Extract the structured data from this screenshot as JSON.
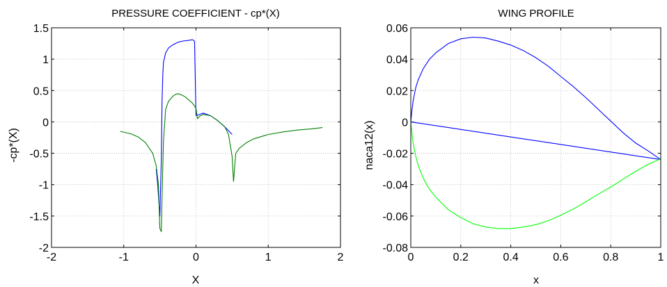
{
  "chart_data": [
    {
      "type": "line",
      "title": "PRESSURE COEFFICIENT - cp*(X)",
      "xlabel": "X",
      "ylabel": "-cp*(X)",
      "xlim": [
        -2,
        2
      ],
      "ylim": [
        -2,
        1.5
      ],
      "xticks": [
        "-2",
        "-1",
        "0",
        "1",
        "2"
      ],
      "yticks": [
        "1.5",
        "1",
        "0.5",
        "0",
        "-0.5",
        "-1",
        "-1.5",
        "-2"
      ],
      "grid": true,
      "series": [
        {
          "color": "#0000ff",
          "x": [
            -0.55,
            -0.53,
            -0.5,
            -0.48,
            -0.47,
            -0.46,
            -0.45,
            -0.42,
            -0.38,
            -0.32,
            -0.25,
            -0.18,
            -0.1,
            -0.05,
            -0.03,
            -0.02,
            0.0,
            0.05,
            0.1,
            0.2,
            0.3,
            0.4,
            0.5
          ],
          "y": [
            -0.75,
            -1.0,
            -1.5,
            -0.6,
            0.3,
            0.75,
            0.95,
            1.1,
            1.18,
            1.23,
            1.27,
            1.29,
            1.3,
            1.31,
            1.3,
            1.28,
            0.1,
            0.12,
            0.14,
            0.1,
            0.02,
            -0.08,
            -0.2
          ]
        },
        {
          "color": "#008000",
          "x": [
            -1.05,
            -0.9,
            -0.8,
            -0.7,
            -0.6,
            -0.55,
            -0.52,
            -0.5,
            -0.48,
            -0.47,
            -0.45,
            -0.42,
            -0.38,
            -0.32,
            -0.28,
            -0.25,
            -0.2,
            -0.15,
            -0.1,
            -0.05,
            0.0,
            0.02,
            0.05,
            0.1,
            0.2,
            0.3,
            0.4,
            0.45,
            0.5,
            0.52,
            0.55,
            0.6,
            0.7,
            0.8,
            1.0,
            1.2,
            1.4,
            1.6,
            1.75
          ],
          "y": [
            -0.15,
            -0.19,
            -0.24,
            -0.33,
            -0.5,
            -0.7,
            -1.0,
            -1.7,
            -1.75,
            -1.2,
            -0.3,
            0.2,
            0.33,
            0.41,
            0.44,
            0.45,
            0.43,
            0.4,
            0.35,
            0.3,
            0.22,
            0.05,
            0.09,
            0.12,
            0.1,
            0.02,
            -0.08,
            -0.2,
            -0.55,
            -0.95,
            -0.5,
            -0.42,
            -0.33,
            -0.27,
            -0.2,
            -0.16,
            -0.13,
            -0.11,
            -0.09
          ]
        }
      ]
    },
    {
      "type": "line",
      "title": "WING PROFILE",
      "xlabel": "x",
      "ylabel": "naca12(x)",
      "xlim": [
        0,
        1
      ],
      "ylim": [
        -0.08,
        0.06
      ],
      "xticks": [
        "0",
        "0.2",
        "0.4",
        "0.6",
        "0.8",
        "1"
      ],
      "yticks": [
        "0.06",
        "0.04",
        "0.02",
        "0",
        "-0.02",
        "-0.04",
        "-0.06",
        "-0.08"
      ],
      "grid": true,
      "series": [
        {
          "color": "#0000ff",
          "x": [
            0,
            0.005,
            0.01,
            0.02,
            0.03,
            0.05,
            0.075,
            0.1,
            0.15,
            0.2,
            0.25,
            0.3,
            0.35,
            0.4,
            0.45,
            0.5,
            0.55,
            0.6,
            0.65,
            0.7,
            0.75,
            0.8,
            0.85,
            0.9,
            0.95,
            1.0
          ],
          "y": [
            0,
            0.008,
            0.014,
            0.022,
            0.027,
            0.034,
            0.04,
            0.044,
            0.05,
            0.053,
            0.054,
            0.0535,
            0.0515,
            0.049,
            0.0455,
            0.041,
            0.0355,
            0.029,
            0.0225,
            0.0155,
            0.008,
            0.0005,
            -0.007,
            -0.0135,
            -0.0185,
            -0.024
          ]
        },
        {
          "color": "#0000ff",
          "x": [
            0,
            1
          ],
          "y": [
            0,
            -0.024
          ]
        },
        {
          "color": "#00ff00",
          "x": [
            0,
            0.005,
            0.01,
            0.02,
            0.03,
            0.05,
            0.075,
            0.1,
            0.15,
            0.2,
            0.25,
            0.3,
            0.35,
            0.4,
            0.45,
            0.5,
            0.55,
            0.6,
            0.65,
            0.7,
            0.75,
            0.8,
            0.85,
            0.9,
            0.95,
            1.0
          ],
          "y": [
            0,
            -0.008,
            -0.014,
            -0.022,
            -0.028,
            -0.036,
            -0.043,
            -0.048,
            -0.056,
            -0.061,
            -0.065,
            -0.067,
            -0.068,
            -0.068,
            -0.067,
            -0.0655,
            -0.063,
            -0.0595,
            -0.0555,
            -0.051,
            -0.046,
            -0.0415,
            -0.0365,
            -0.0315,
            -0.027,
            -0.0235
          ]
        }
      ]
    }
  ]
}
